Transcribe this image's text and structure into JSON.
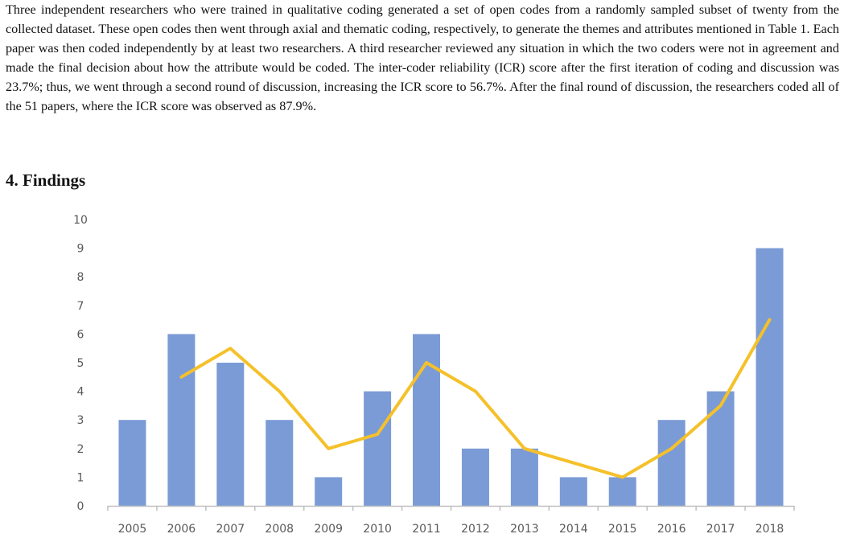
{
  "document": {
    "paragraph": "Three independent researchers who were trained in qualitative coding generated a set of open codes from a randomly sampled subset of twenty from the collected dataset. These open codes then went through axial and thematic coding, respectively, to generate the themes and attributes mentioned in Table 1. Each paper was then coded independently by at least two researchers. A third researcher reviewed any situation in which the two coders were not in agreement and made the final decision about how the attribute would be coded. The inter-coder reliability (ICR) score after the first iteration of coding and discussion was 23.7%; thus, we went through a second round of discussion, increasing the ICR score to 56.7%. After the final round of discussion, the researchers coded all of the 51 papers, where the ICR score was observed as 87.9%.",
    "heading": "4.  Findings"
  },
  "chart_data": {
    "type": "bar",
    "categories": [
      "2005",
      "2006",
      "2007",
      "2008",
      "2009",
      "2010",
      "2011",
      "2012",
      "2013",
      "2014",
      "2015",
      "2016",
      "2017",
      "2018"
    ],
    "series": [
      {
        "type": "bar",
        "values": [
          3,
          6,
          5,
          3,
          1,
          4,
          6,
          2,
          2,
          1,
          1,
          3,
          4,
          9
        ]
      },
      {
        "type": "line",
        "values": [
          null,
          4.5,
          5.5,
          4,
          2,
          2.5,
          5,
          4,
          2,
          1.5,
          1,
          2,
          3.5,
          6.5
        ]
      }
    ],
    "ylim": [
      0,
      10
    ],
    "yticks": [
      "0",
      "1",
      "2",
      "3",
      "4",
      "5",
      "6",
      "7",
      "8",
      "9",
      "10"
    ],
    "grid": false,
    "colors": {
      "bar": "#7b9bd6",
      "line": "#f5c12a",
      "axis": "#bfbfbf"
    }
  }
}
